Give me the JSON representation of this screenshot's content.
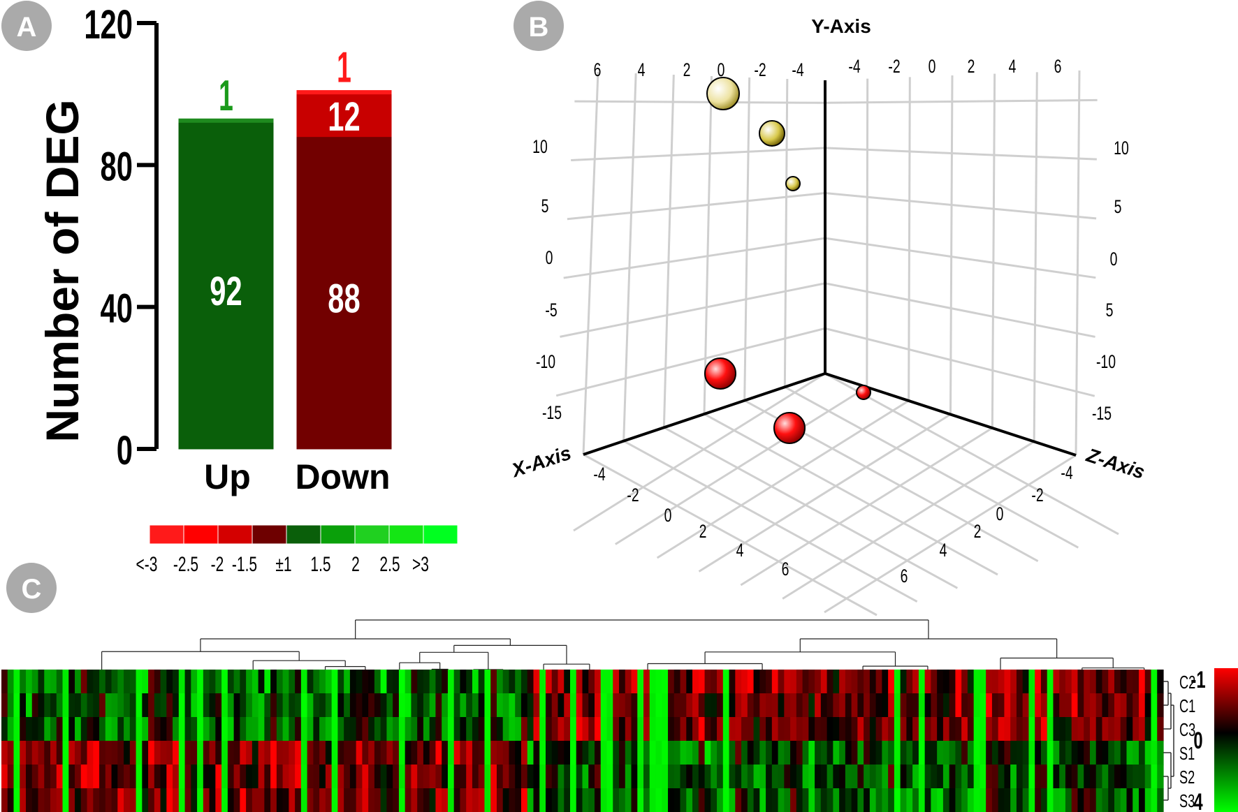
{
  "panels": {
    "a_label": "A",
    "b_label": "B",
    "c_label": "C"
  },
  "colors": {
    "up_main": "#0a5f0a",
    "up_top": "#1f8a1f",
    "down_main": "#720000",
    "down_mid": "#c80000",
    "down_top": "#ff1a1a",
    "green_text": "#1a9a1a",
    "red_text": "#ff1a1a",
    "yellow_ball": "#c9b53a",
    "red_ball": "#e00000",
    "heat_red": "#ff0000",
    "heat_black": "#000000",
    "heat_green": "#00ff00"
  },
  "chart_data": [
    {
      "type": "bar",
      "stacked": true,
      "ylabel": "Number of DEG",
      "ylim": [
        0,
        120
      ],
      "yticks": [
        "0",
        "40",
        "80",
        "120"
      ],
      "categories": [
        "Up",
        "Down"
      ],
      "series": [
        {
          "segment": "main",
          "values": [
            92,
            88
          ],
          "labels": [
            "92",
            "88"
          ]
        },
        {
          "segment": "mid",
          "values": [
            0,
            12
          ],
          "labels": [
            "",
            "12"
          ]
        },
        {
          "segment": "top",
          "values": [
            1,
            1
          ],
          "labels": [
            "1",
            "1"
          ]
        }
      ]
    },
    {
      "type": "scatter",
      "dimensions": 3,
      "axis_labels": {
        "x": "X-Axis",
        "y": "Y-Axis",
        "z": "Z-Axis"
      },
      "x_ticks": [
        "-4",
        "-2",
        "0",
        "2",
        "4",
        "6"
      ],
      "z_ticks": [
        "-4",
        "-2",
        "0",
        "2",
        "4",
        "6"
      ],
      "top_ticks_left": [
        "6",
        "4",
        "2",
        "0",
        "-2",
        "-4"
      ],
      "top_ticks_right": [
        "-4",
        "-2",
        "0",
        "2",
        "4",
        "6"
      ],
      "vertical_ticks_left": [
        "10",
        "5",
        "0",
        "-5",
        "-10",
        "-15"
      ],
      "vertical_ticks_right": [
        "10",
        "5",
        "0",
        "5",
        "-10",
        "-15"
      ],
      "points": [
        {
          "group": "yellow",
          "x": -4,
          "y": 10,
          "z": 0,
          "size": "large"
        },
        {
          "group": "yellow",
          "x": -4,
          "y": 8,
          "z": -2,
          "size": "medium"
        },
        {
          "group": "yellow",
          "x": -4,
          "y": 5,
          "z": -3,
          "size": "small"
        },
        {
          "group": "red",
          "x": -2,
          "y": -12,
          "z": 0,
          "size": "large"
        },
        {
          "group": "red",
          "x": 2,
          "y": -16,
          "z": 0,
          "size": "large"
        },
        {
          "group": "red",
          "x": -3,
          "y": -13,
          "z": -4,
          "size": "small"
        }
      ]
    },
    {
      "type": "heatmap",
      "rows": [
        "C2",
        "C1",
        "C3",
        "S1",
        "S2",
        "S3"
      ],
      "scale_labels": [
        "-1",
        "0",
        "4"
      ],
      "legend": [
        "<-3",
        "-2.5",
        "-2",
        "-1.5",
        "±1",
        "1.5",
        "2",
        "2.5",
        ">3"
      ],
      "legend_colors": [
        "#ff1a1a",
        "#ff0000",
        "#d40000",
        "#6e0000",
        "#0a5f0a",
        "#0aa00a",
        "#20d020",
        "#14e614",
        "#00ff20"
      ]
    }
  ]
}
